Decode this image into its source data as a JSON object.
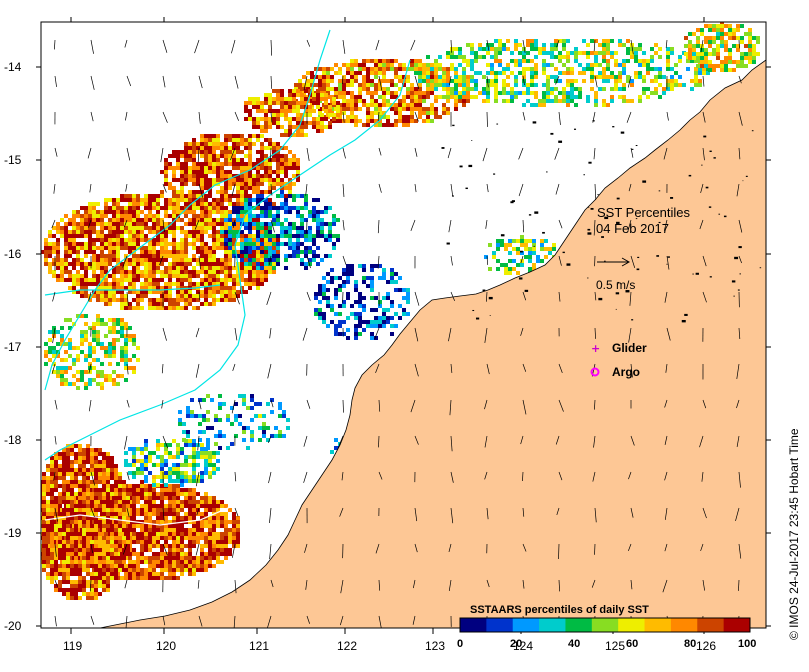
{
  "map": {
    "title": "SST Percentiles",
    "date": "04 Feb 2017",
    "arrow_scale_label": "0.5 m/s",
    "legend_title": "SSTAARS percentiles of daily SST",
    "legend_ticks": [
      "0",
      "20",
      "40",
      "60",
      "80",
      "100"
    ],
    "legend_colors": [
      "#000080",
      "#0033cc",
      "#0099ff",
      "#00cccc",
      "#00bb44",
      "#88dd22",
      "#eeee00",
      "#ffbb00",
      "#ff8800",
      "#cc4400",
      "#aa0000"
    ],
    "markers": [
      {
        "label": "Glider",
        "symbol": "+",
        "color": "#cc00cc"
      },
      {
        "label": "Argo",
        "symbol": "⊛",
        "color": "#ff00ff"
      }
    ],
    "credit": "© IMOS 24-Jul-2017 23:45 Hobart Time",
    "x_ticks": [
      "119",
      "120",
      "121",
      "122",
      "123",
      "124",
      "125",
      "126"
    ],
    "y_ticks": [
      "-14",
      "-15",
      "-16",
      "-17",
      "-18",
      "-19",
      "-20"
    ],
    "land_color": "#fdc795",
    "current_color": "#00e5e5"
  }
}
